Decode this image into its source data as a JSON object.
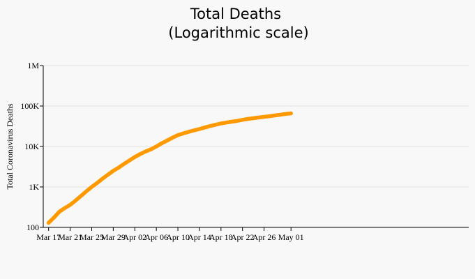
{
  "chart_data": {
    "type": "line",
    "title": "Total Deaths",
    "subtitle": "(Logarithmic scale)",
    "xlabel": "",
    "ylabel": "Total Coronavirus Deaths",
    "y_scale": "log",
    "ylim": [
      100,
      1000000
    ],
    "y_ticks": [
      100,
      1000,
      10000,
      100000,
      1000000
    ],
    "y_tick_labels": [
      "100",
      "1K",
      "10K",
      "100K",
      "1M"
    ],
    "x_range": [
      "2020-03-16",
      "2020-06-03"
    ],
    "x_ticks": [
      "2020-03-17",
      "2020-03-21",
      "2020-03-25",
      "2020-03-29",
      "2020-04-02",
      "2020-04-06",
      "2020-04-10",
      "2020-04-14",
      "2020-04-18",
      "2020-04-22",
      "2020-04-26",
      "2020-05-01"
    ],
    "x_tick_labels": [
      "Mar 17",
      "Mar 21",
      "Mar 25",
      "Mar 29",
      "Apr 02",
      "Apr 06",
      "Apr 10",
      "Apr 14",
      "Apr 18",
      "Apr 22",
      "Apr 26",
      "May 01"
    ],
    "grid": {
      "y": true,
      "x": false
    },
    "series_color": "#ff9900",
    "series": [
      {
        "x": [
          "2020-03-17",
          "2020-03-18",
          "2020-03-19",
          "2020-03-20",
          "2020-03-21",
          "2020-03-22",
          "2020-03-23",
          "2020-03-24",
          "2020-03-25",
          "2020-03-26",
          "2020-03-27",
          "2020-03-28",
          "2020-03-29",
          "2020-03-30",
          "2020-03-31",
          "2020-04-01",
          "2020-04-02",
          "2020-04-03",
          "2020-04-04",
          "2020-04-05",
          "2020-04-06",
          "2020-04-07",
          "2020-04-08",
          "2020-04-09",
          "2020-04-10",
          "2020-04-11",
          "2020-04-12",
          "2020-04-13",
          "2020-04-14",
          "2020-04-15",
          "2020-04-16",
          "2020-04-17",
          "2020-04-18",
          "2020-04-19",
          "2020-04-20",
          "2020-04-21",
          "2020-04-22",
          "2020-04-23",
          "2020-04-24",
          "2020-04-25",
          "2020-04-26",
          "2020-04-27",
          "2020-04-28",
          "2020-04-29",
          "2020-04-30",
          "2020-05-01"
        ],
        "values": [
          130,
          175,
          245,
          300,
          360,
          460,
          600,
          780,
          1000,
          1250,
          1600,
          2000,
          2500,
          3000,
          3700,
          4500,
          5500,
          6500,
          7500,
          8500,
          10000,
          12000,
          14000,
          16500,
          19000,
          21000,
          23000,
          25000,
          27000,
          29500,
          32000,
          34500,
          37000,
          39000,
          41000,
          43000,
          45500,
          48000,
          50000,
          52000,
          54000,
          56000,
          58500,
          61000,
          63500,
          66000
        ]
      }
    ]
  }
}
